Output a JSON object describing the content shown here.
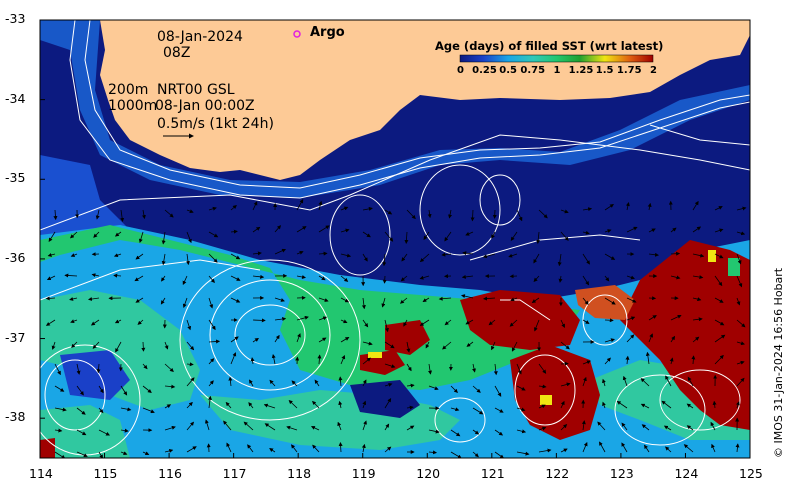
{
  "map": {
    "date": "08-Jan-2024",
    "time": "08Z",
    "platform_label": "Argo",
    "contour_labels": [
      "200m",
      "1000m"
    ],
    "product": "NRT00 GSL",
    "product_time": "08-Jan 00:00Z",
    "velocity_scale": "0.5m/s (1kt 24h)",
    "credit": "© IMOS 31-Jan-2024 16:56 Hobart",
    "x_ticks": [
      "114",
      "115",
      "116",
      "117",
      "118",
      "119",
      "120",
      "121",
      "122",
      "123",
      "124",
      "125"
    ],
    "y_ticks": [
      "-33",
      "-34",
      "-35",
      "-36",
      "-37",
      "-38"
    ],
    "lon_range": [
      114,
      125
    ],
    "lat_range": [
      -38.5,
      -33
    ]
  },
  "legend": {
    "title": "Age (days) of filled SST (wrt latest)",
    "ticks": [
      "0",
      "0.25",
      "0.5",
      "0.75",
      "1",
      "1.25",
      "1.5",
      "1.75",
      "2"
    ],
    "range": [
      0,
      2
    ]
  },
  "colors": {
    "land": "#fdca96",
    "age_0": "#0c1a80",
    "age_0_5": "#1aa6e6",
    "age_1": "#22c770",
    "age_1_5": "#f0e612",
    "age_2": "#a00000",
    "shelf": "#1858c8",
    "argo": "#e020e0"
  }
}
